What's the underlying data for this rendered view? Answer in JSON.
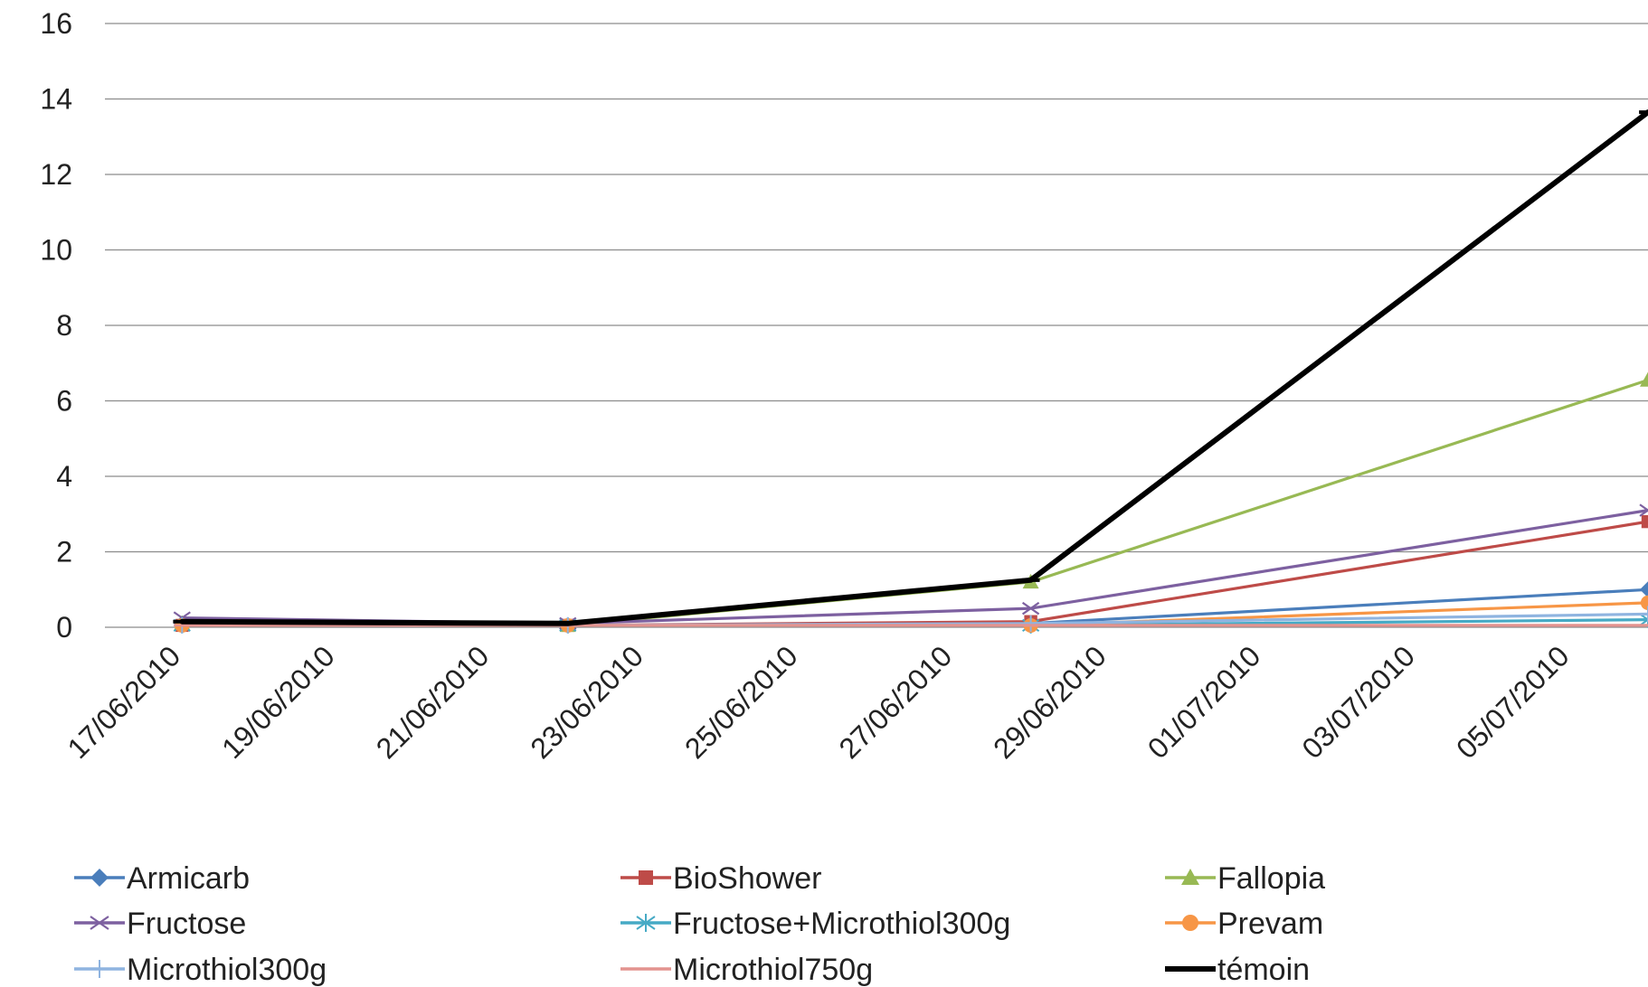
{
  "chart_data": {
    "type": "line",
    "title": "",
    "xlabel": "",
    "ylabel": "",
    "ylim": [
      0,
      16
    ],
    "yticks": [
      0,
      2,
      4,
      6,
      8,
      10,
      12,
      14,
      16
    ],
    "ytick_labels": [
      "0",
      "2",
      "4",
      "6",
      "8",
      "10",
      "12",
      "14",
      "16"
    ],
    "grid": true,
    "legend_position": "bottom",
    "x_axis": {
      "type": "date",
      "range": [
        "2010-06-16",
        "2010-07-06"
      ],
      "ticks": [
        "2010-06-17",
        "2010-06-19",
        "2010-06-21",
        "2010-06-23",
        "2010-06-25",
        "2010-06-27",
        "2010-06-29",
        "2010-07-01",
        "2010-07-03",
        "2010-07-05"
      ],
      "tick_labels": [
        "17/06/2010",
        "19/06/2010",
        "21/06/2010",
        "23/06/2010",
        "25/06/2010",
        "27/06/2010",
        "29/06/2010",
        "01/07/2010",
        "03/07/2010",
        "05/07/2010"
      ]
    },
    "x": [
      "2010-06-17",
      "2010-06-22",
      "2010-06-28",
      "2010-07-06"
    ],
    "series": [
      {
        "name": "Armicarb",
        "color": "#4a7ebb",
        "marker": "diamond",
        "values": [
          0.1,
          0.05,
          0.1,
          1.0
        ]
      },
      {
        "name": "BioShower",
        "color": "#be4b48",
        "marker": "square",
        "values": [
          0.05,
          0.05,
          0.15,
          2.8
        ]
      },
      {
        "name": "Fallopia",
        "color": "#98b954",
        "marker": "triangle",
        "values": [
          0.1,
          0.05,
          1.2,
          6.55
        ]
      },
      {
        "name": "Fructose",
        "color": "#7d60a0",
        "marker": "x",
        "values": [
          0.25,
          0.1,
          0.5,
          3.1
        ]
      },
      {
        "name": "Fructose+Microthiol300g",
        "color": "#46aac5",
        "marker": "star",
        "values": [
          0.05,
          0.05,
          0.05,
          0.2
        ]
      },
      {
        "name": "Prevam",
        "color": "#f79646",
        "marker": "circle",
        "values": [
          0.05,
          0.05,
          0.05,
          0.65
        ]
      },
      {
        "name": "Microthiol300g",
        "color": "#8fb4e0",
        "marker": "plus",
        "values": [
          0.05,
          0.05,
          0.1,
          0.35
        ]
      },
      {
        "name": "Microthiol750g",
        "color": "#e3938f",
        "marker": "dash",
        "values": [
          0.05,
          0.05,
          0.05,
          0.05
        ]
      },
      {
        "name": "témoin",
        "color": "#000000",
        "marker": "hbar",
        "values": [
          0.15,
          0.1,
          1.25,
          13.65
        ]
      }
    ]
  }
}
